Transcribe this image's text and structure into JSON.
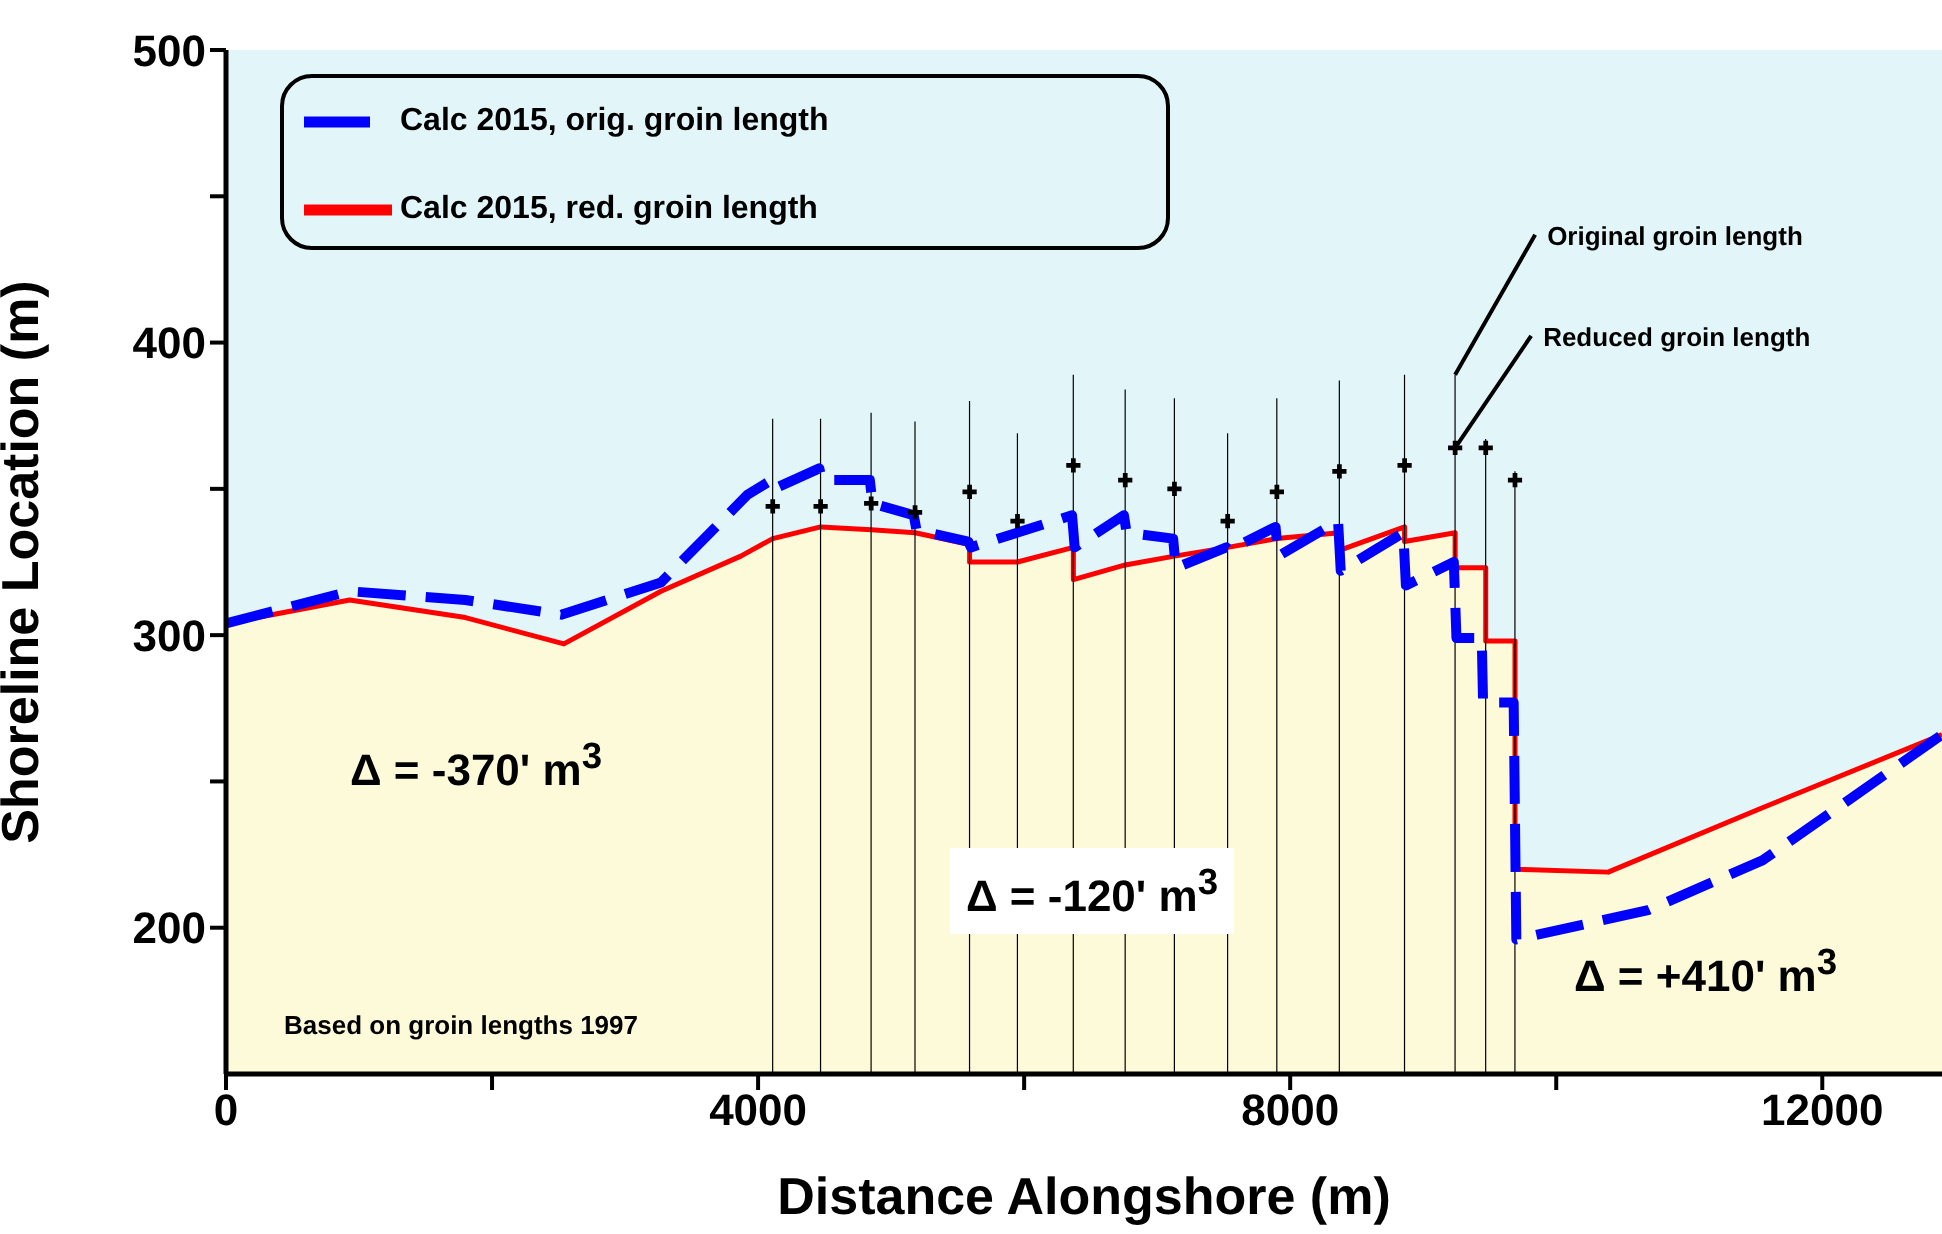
{
  "chart_data": {
    "type": "line",
    "xlabel": "Distance Alongshore (m)",
    "ylabel": "Shoreline Location (m)",
    "xlim": [
      0,
      12900
    ],
    "xticks": [
      0,
      {
        "value": 2000,
        "label": null
      },
      4000,
      {
        "value": 6000,
        "label": null
      },
      8000,
      {
        "value": 10000,
        "label": null
      },
      12000
    ],
    "ylim": [
      150,
      500
    ],
    "yticks": [
      200,
      {
        "value": 250,
        "label": null
      },
      300,
      {
        "value": 350,
        "label": null
      },
      400,
      {
        "value": 450,
        "label": null
      },
      500
    ],
    "legend": "top left",
    "series": [
      {
        "name": "Calc 2015, orig. groin length",
        "color": "#0000ff",
        "line_style": "dashed",
        "x": [
          0,
          930,
          1800,
          2520,
          3270,
          3920,
          4100,
          4120,
          4460,
          4480,
          4840,
          4860,
          5170,
          5190,
          5580,
          5600,
          6360,
          6380,
          6750,
          6770,
          7120,
          7140,
          7520,
          7540,
          7890,
          7910,
          8360,
          8380,
          8850,
          8870,
          9230,
          9250,
          9440,
          9450,
          9680,
          9700,
          10690,
          11550,
          12900
        ],
        "values": [
          304,
          315,
          312,
          307,
          318,
          348,
          353,
          350,
          357,
          353,
          353,
          345,
          341,
          336,
          332,
          330,
          341,
          330,
          341,
          335,
          333,
          323,
          330,
          329,
          337,
          327,
          339,
          322,
          335,
          317,
          325,
          299,
          299,
          277,
          277,
          196,
          206,
          223,
          266
        ]
      },
      {
        "name": "Calc 2015, red. groin length",
        "type": "area",
        "color": "#ff0000",
        "line_style": "solid",
        "x": [
          0,
          930,
          1800,
          2540,
          3270,
          3870,
          4110,
          4470,
          4850,
          5180,
          5590,
          5590,
          5950,
          6370,
          6370,
          6760,
          7130,
          7530,
          7900,
          8370,
          8370,
          8860,
          8860,
          9240,
          9240,
          9470,
          9470,
          9690,
          9690,
          10390,
          11550,
          12900
        ],
        "values": [
          304,
          312,
          306,
          297,
          315,
          327,
          333,
          337,
          336,
          335,
          331,
          325,
          325,
          330,
          319,
          324,
          327,
          330,
          333,
          335,
          329,
          337,
          332,
          335,
          323,
          323,
          298,
          298,
          220,
          219,
          241,
          266
        ]
      },
      {
        "type": "bar",
        "color": "#000000",
        "x": [
          4110,
          4470,
          4850,
          5180,
          5590,
          5950,
          6370,
          6760,
          7130,
          7530,
          7900,
          8370,
          8860,
          9240,
          9470,
          9690
        ],
        "values": [
          374,
          374,
          376,
          373,
          380,
          369,
          389,
          384,
          381,
          369,
          381,
          387,
          389,
          389,
          367,
          356
        ]
      },
      {
        "type": "scatter",
        "color": "#000000",
        "marker": "cross",
        "x": [
          4110,
          4470,
          4850,
          5180,
          5590,
          5950,
          6370,
          6760,
          7130,
          7530,
          7900,
          8370,
          8860,
          9240,
          9470,
          9690
        ],
        "values": [
          344,
          344,
          345,
          342,
          349,
          339,
          358,
          353,
          350,
          339,
          349,
          356,
          358,
          364,
          364,
          353
        ]
      }
    ],
    "annotations": [
      "Δ = -370' m$^{3}$",
      "Δ = -120' m$^{3}$",
      "Δ = +410' m$^{3}$",
      "Based on groin lengths 1997",
      {
        "text": "Original groin length",
        "x": 9240,
        "y": 389
      },
      {
        "text": "Reduced groin length",
        "x": 9240,
        "y": 364
      }
    ]
  }
}
